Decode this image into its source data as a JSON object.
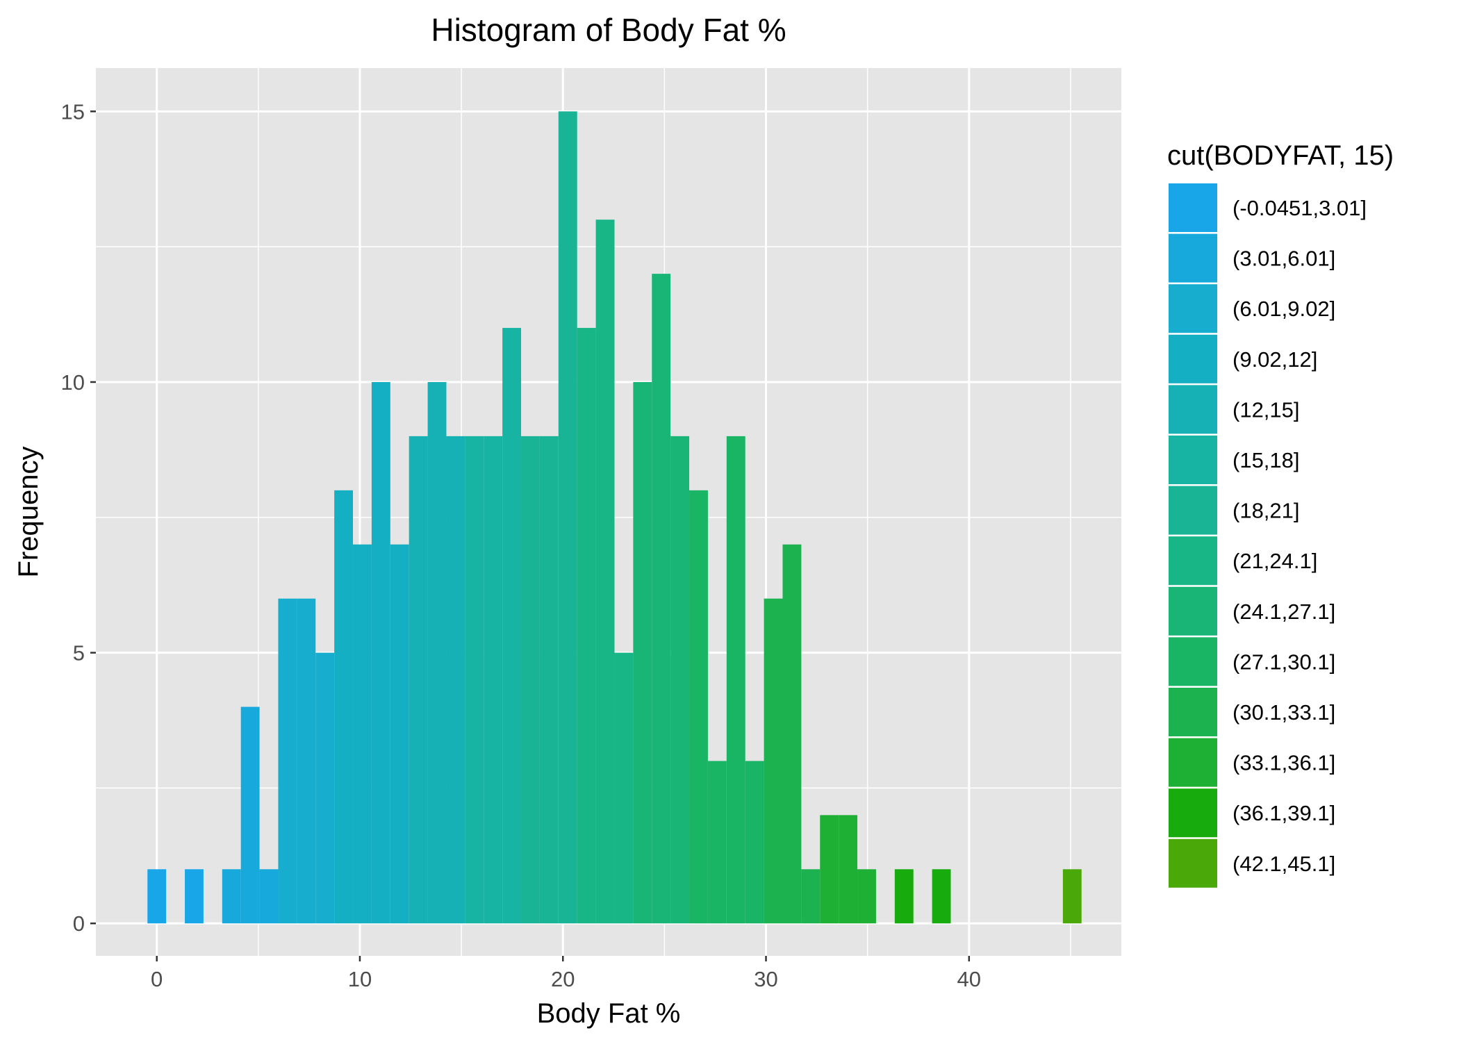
{
  "chart_data": {
    "type": "bar",
    "title": "Histogram of Body Fat %",
    "xlabel": "Body Fat %",
    "ylabel": "Frequency",
    "xlim": [
      -3,
      47.5
    ],
    "ylim": [
      -0.6,
      15.8
    ],
    "x_ticks": [
      0,
      10,
      20,
      30,
      40
    ],
    "y_ticks": [
      0,
      5,
      10,
      15
    ],
    "grid": true,
    "legend_position": "right",
    "legend_title": "cut(BODYFAT, 15)",
    "bin_width": 0.92,
    "bin_start": -0.46,
    "bins": [
      {
        "x": 0.0,
        "count": 1,
        "group": 0
      },
      {
        "x": 1.84,
        "count": 1,
        "group": 0
      },
      {
        "x": 3.68,
        "count": 1,
        "group": 1
      },
      {
        "x": 4.6,
        "count": 4,
        "group": 1
      },
      {
        "x": 5.52,
        "count": 1,
        "group": 1
      },
      {
        "x": 6.44,
        "count": 6,
        "group": 2
      },
      {
        "x": 7.36,
        "count": 6,
        "group": 2
      },
      {
        "x": 8.28,
        "count": 5,
        "group": 2
      },
      {
        "x": 9.2,
        "count": 8,
        "group": 3
      },
      {
        "x": 10.12,
        "count": 7,
        "group": 3
      },
      {
        "x": 11.04,
        "count": 10,
        "group": 3
      },
      {
        "x": 11.96,
        "count": 7,
        "group": 3
      },
      {
        "x": 12.88,
        "count": 9,
        "group": 4
      },
      {
        "x": 13.8,
        "count": 10,
        "group": 4
      },
      {
        "x": 14.72,
        "count": 9,
        "group": 4
      },
      {
        "x": 15.64,
        "count": 9,
        "group": 5
      },
      {
        "x": 16.56,
        "count": 9,
        "group": 5
      },
      {
        "x": 17.48,
        "count": 11,
        "group": 5
      },
      {
        "x": 18.4,
        "count": 9,
        "group": 6
      },
      {
        "x": 19.32,
        "count": 9,
        "group": 6
      },
      {
        "x": 20.24,
        "count": 15,
        "group": 6
      },
      {
        "x": 21.16,
        "count": 11,
        "group": 7
      },
      {
        "x": 22.08,
        "count": 13,
        "group": 7
      },
      {
        "x": 23.0,
        "count": 5,
        "group": 7
      },
      {
        "x": 23.92,
        "count": 10,
        "group": 8
      },
      {
        "x": 24.84,
        "count": 12,
        "group": 8
      },
      {
        "x": 25.76,
        "count": 9,
        "group": 8
      },
      {
        "x": 26.68,
        "count": 8,
        "group": 9
      },
      {
        "x": 27.6,
        "count": 3,
        "group": 9
      },
      {
        "x": 28.52,
        "count": 9,
        "group": 9
      },
      {
        "x": 29.44,
        "count": 3,
        "group": 9
      },
      {
        "x": 30.36,
        "count": 6,
        "group": 10
      },
      {
        "x": 31.28,
        "count": 7,
        "group": 10
      },
      {
        "x": 32.2,
        "count": 1,
        "group": 10
      },
      {
        "x": 33.12,
        "count": 2,
        "group": 11
      },
      {
        "x": 34.04,
        "count": 2,
        "group": 11
      },
      {
        "x": 34.96,
        "count": 1,
        "group": 11
      },
      {
        "x": 36.8,
        "count": 1,
        "group": 12
      },
      {
        "x": 38.64,
        "count": 1,
        "group": 12
      },
      {
        "x": 45.08,
        "count": 1,
        "group": 13
      }
    ],
    "legend": [
      {
        "label": "(-0.0451,3.01]",
        "color": "#19A6E8"
      },
      {
        "label": "(3.01,6.01]",
        "color": "#17A9DB"
      },
      {
        "label": "(6.01,9.02]",
        "color": "#16ADCF"
      },
      {
        "label": "(9.02,12]",
        "color": "#15AFC4"
      },
      {
        "label": "(12,15]",
        "color": "#16B1B5"
      },
      {
        "label": "(15,18]",
        "color": "#17B3A3"
      },
      {
        "label": "(18,21]",
        "color": "#18B495"
      },
      {
        "label": "(21,24.1]",
        "color": "#18B586"
      },
      {
        "label": "(24.1,27.1]",
        "color": "#19B577"
      },
      {
        "label": "(27.1,30.1]",
        "color": "#1AB465"
      },
      {
        "label": "(30.1,33.1]",
        "color": "#1CB24F"
      },
      {
        "label": "(33.1,36.1]",
        "color": "#1DB035"
      },
      {
        "label": "(36.1,39.1]",
        "color": "#18AB0D"
      },
      {
        "label": "(42.1,45.1]",
        "color": "#4AA808"
      }
    ]
  },
  "colors": {
    "panel_background": "#E5E5E5",
    "grid_line": "#FFFFFF",
    "tick_mark": "#333333"
  }
}
